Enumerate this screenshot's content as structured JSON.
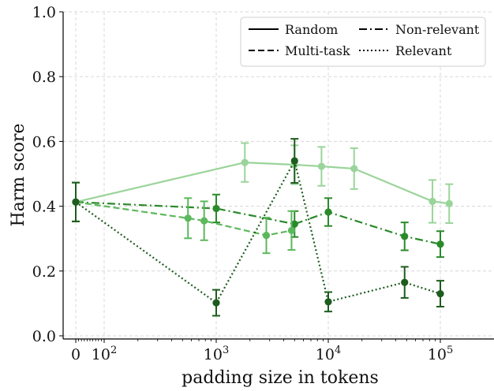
{
  "chart_data": {
    "type": "line",
    "xlabel": "padding size in tokens",
    "ylabel": "Harm score",
    "ylim": [
      0.0,
      1.0
    ],
    "yticks": [
      "0.0",
      "0.2",
      "0.4",
      "0.6",
      "0.8",
      "1.0"
    ],
    "x_scale": "symlog",
    "xticks": [
      {
        "value": 0,
        "base": "0",
        "exp": ""
      },
      {
        "value": 100,
        "base": "10",
        "exp": "2"
      },
      {
        "value": 1000,
        "base": "10",
        "exp": "3"
      },
      {
        "value": 10000,
        "base": "10",
        "exp": "4"
      },
      {
        "value": 100000,
        "base": "10",
        "exp": "5"
      }
    ],
    "grid": true,
    "legend_position": "top-right",
    "series": [
      {
        "name": "Random",
        "line_style": "solid",
        "color": "#9ad49a",
        "points": [
          {
            "x": 0,
            "y": 0.413,
            "err": 0.06
          },
          {
            "x": 1800,
            "y": 0.535,
            "err": 0.06
          },
          {
            "x": 5000,
            "y": 0.528,
            "err": 0.06
          },
          {
            "x": 8700,
            "y": 0.523,
            "err": 0.06
          },
          {
            "x": 17000,
            "y": 0.516,
            "err": 0.063
          },
          {
            "x": 85000,
            "y": 0.415,
            "err": 0.066
          },
          {
            "x": 120000,
            "y": 0.408,
            "err": 0.06
          }
        ]
      },
      {
        "name": "Non-relevant",
        "line_style": "dashdot",
        "color": "#2a8a2a",
        "points": [
          {
            "x": 0,
            "y": 0.413,
            "err": 0.06
          },
          {
            "x": 1000,
            "y": 0.393,
            "err": 0.043
          },
          {
            "x": 5000,
            "y": 0.345,
            "err": 0.04
          },
          {
            "x": 10000,
            "y": 0.382,
            "err": 0.043
          },
          {
            "x": 48000,
            "y": 0.307,
            "err": 0.043
          },
          {
            "x": 100000,
            "y": 0.283,
            "err": 0.04
          }
        ]
      },
      {
        "name": "Multi-task",
        "line_style": "dashed",
        "color": "#5cb85c",
        "points": [
          {
            "x": 0,
            "y": 0.413,
            "err": 0.06
          },
          {
            "x": 560,
            "y": 0.363,
            "err": 0.062
          },
          {
            "x": 780,
            "y": 0.355,
            "err": 0.06
          },
          {
            "x": 2800,
            "y": 0.31,
            "err": 0.055
          },
          {
            "x": 4700,
            "y": 0.325,
            "err": 0.06
          }
        ]
      },
      {
        "name": "Relevant",
        "line_style": "dotted",
        "color": "#1e5c1e",
        "points": [
          {
            "x": 0,
            "y": 0.413,
            "err": 0.06
          },
          {
            "x": 1000,
            "y": 0.102,
            "err": 0.04
          },
          {
            "x": 5000,
            "y": 0.54,
            "err": 0.068
          },
          {
            "x": 10000,
            "y": 0.105,
            "err": 0.03
          },
          {
            "x": 48000,
            "y": 0.165,
            "err": 0.048
          },
          {
            "x": 100000,
            "y": 0.13,
            "err": 0.04
          }
        ]
      }
    ],
    "legend": {
      "columns": [
        [
          "Random",
          "Multi-task"
        ],
        [
          "Non-relevant",
          "Relevant"
        ]
      ]
    }
  }
}
